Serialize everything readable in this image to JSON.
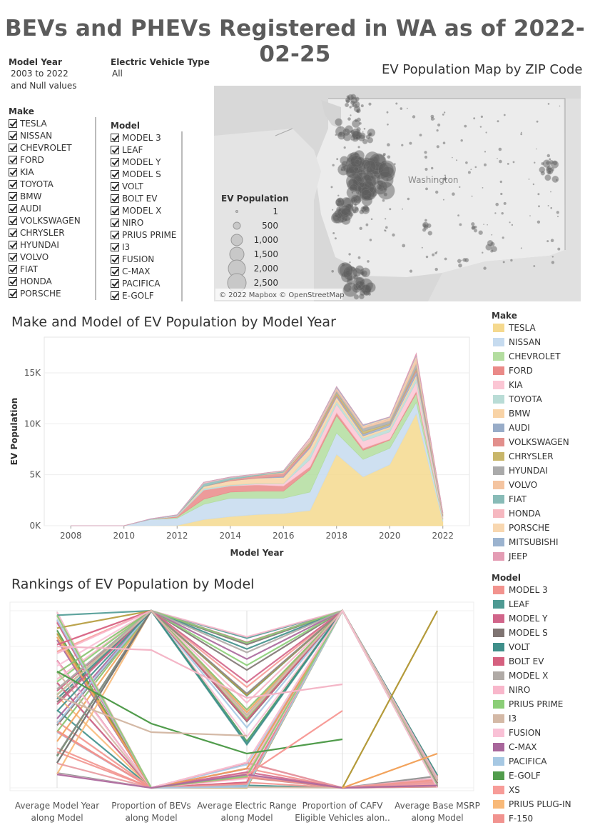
{
  "dashboard": {
    "title": "BEVs and PHEVs Registered in WA as of 2022-02-25"
  },
  "filters": {
    "model_year": {
      "label": "Model Year",
      "value_line1": "2003 to 2022",
      "value_line2": "and Null values"
    },
    "ev_type": {
      "label": "Electric Vehicle Type",
      "value": "All"
    },
    "make": {
      "label": "Make",
      "items": [
        "TESLA",
        "NISSAN",
        "CHEVROLET",
        "FORD",
        "KIA",
        "TOYOTA",
        "BMW",
        "AUDI",
        "VOLKSWAGEN",
        "CHRYSLER",
        "HYUNDAI",
        "VOLVO",
        "FIAT",
        "HONDA",
        "PORSCHE"
      ]
    },
    "model": {
      "label": "Model",
      "items": [
        "MODEL 3",
        "LEAF",
        "MODEL Y",
        "MODEL S",
        "VOLT",
        "BOLT EV",
        "MODEL X",
        "NIRO",
        "PRIUS PRIME",
        "I3",
        "FUSION",
        "C-MAX",
        "PACIFICA",
        "E-GOLF"
      ]
    }
  },
  "map": {
    "title": "EV Population Map by ZIP Code",
    "state_label": "Washington",
    "attribution": "© 2022 Mapbox © OpenStreetMap",
    "legend": {
      "title": "EV Population",
      "sizes": [
        "1",
        "500",
        "1,000",
        "1,500",
        "2,000",
        "2,500"
      ]
    }
  },
  "chart_data": [
    {
      "type": "area",
      "title": "Make and Model of EV Population by Model Year",
      "xlabel": "Model Year",
      "ylabel": "EV Population",
      "xlim": [
        2007,
        2023
      ],
      "ylim": [
        0,
        18500
      ],
      "x_ticks": [
        "2008",
        "2010",
        "2012",
        "2014",
        "2016",
        "2018",
        "2020",
        "2022"
      ],
      "y_ticks": [
        "0K",
        "5K",
        "10K",
        "15K"
      ],
      "x": [
        2008,
        2009,
        2010,
        2011,
        2012,
        2013,
        2014,
        2015,
        2016,
        2017,
        2018,
        2019,
        2020,
        2021,
        2022
      ],
      "legend_title": "Make",
      "stacked_series_colors": {
        "TESLA": "#f5d98e",
        "NISSAN": "#c6dbef",
        "CHEVROLET": "#b3dd9f",
        "FORD": "#ea8a88",
        "KIA": "#fbc6d4",
        "TOYOTA": "#b9dcd6",
        "BMW": "#f8d3a6",
        "AUDI": "#98acc8",
        "VOLKSWAGEN": "#e28f8c",
        "CHRYSLER": "#c8b66a",
        "HYUNDAI": "#aaaaaa",
        "VOLVO": "#f4c4a0",
        "FIAT": "#88bbb7",
        "HONDA": "#f6b8c0",
        "PORSCHE": "#f8d7b0",
        "MITSUBISHI": "#9bb3cf",
        "JEEP": "#e49cb4"
      },
      "series": [
        {
          "name": "TESLA",
          "values": [
            0,
            0,
            0,
            10,
            30,
            600,
            900,
            1100,
            1200,
            1500,
            7000,
            4800,
            6000,
            11000,
            400
          ]
        },
        {
          "name": "NISSAN",
          "values": [
            0,
            0,
            0,
            600,
            700,
            1500,
            1800,
            1600,
            1500,
            1800,
            2100,
            1700,
            1600,
            1100,
            200
          ]
        },
        {
          "name": "CHEVROLET",
          "values": [
            0,
            0,
            0,
            20,
            100,
            500,
            600,
            700,
            700,
            2200,
            1700,
            900,
            800,
            900,
            100
          ]
        },
        {
          "name": "FORD",
          "values": [
            0,
            0,
            0,
            0,
            100,
            900,
            600,
            600,
            500,
            300,
            300,
            200,
            100,
            200,
            20
          ]
        },
        {
          "name": "KIA",
          "values": [
            0,
            0,
            0,
            0,
            0,
            0,
            10,
            100,
            200,
            700,
            800,
            700,
            700,
            900,
            100
          ]
        },
        {
          "name": "TOYOTA",
          "values": [
            0,
            0,
            0,
            0,
            100,
            150,
            100,
            60,
            40,
            500,
            300,
            300,
            300,
            400,
            50
          ]
        },
        {
          "name": "BMW",
          "values": [
            0,
            0,
            0,
            0,
            0,
            200,
            400,
            500,
            600,
            600,
            400,
            200,
            200,
            300,
            50
          ]
        },
        {
          "name": "AUDI",
          "values": [
            0,
            0,
            0,
            0,
            0,
            0,
            0,
            10,
            100,
            150,
            150,
            200,
            200,
            350,
            40
          ]
        },
        {
          "name": "VOLKSWAGEN",
          "values": [
            0,
            0,
            0,
            0,
            0,
            0,
            100,
            250,
            300,
            200,
            100,
            10,
            10,
            200,
            50
          ]
        },
        {
          "name": "CHRYSLER",
          "values": [
            0,
            0,
            0,
            0,
            0,
            0,
            0,
            0,
            0,
            150,
            200,
            250,
            100,
            100,
            20
          ]
        },
        {
          "name": "HYUNDAI",
          "values": [
            0,
            0,
            0,
            0,
            0,
            0,
            0,
            0,
            0,
            100,
            200,
            300,
            300,
            500,
            100
          ]
        },
        {
          "name": "VOLVO",
          "values": [
            0,
            0,
            0,
            0,
            0,
            0,
            0,
            0,
            100,
            150,
            150,
            150,
            200,
            500,
            100
          ]
        },
        {
          "name": "FIAT",
          "values": [
            0,
            0,
            0,
            0,
            0,
            300,
            200,
            100,
            100,
            10,
            0,
            0,
            0,
            0,
            0
          ]
        },
        {
          "name": "HONDA",
          "values": [
            0,
            0,
            0,
            0,
            0,
            100,
            50,
            30,
            20,
            200,
            100,
            30,
            20,
            20,
            0
          ]
        },
        {
          "name": "PORSCHE",
          "values": [
            0,
            0,
            0,
            0,
            0,
            0,
            0,
            20,
            20,
            50,
            50,
            80,
            100,
            200,
            20
          ]
        },
        {
          "name": "MITSUBISHI",
          "values": [
            0,
            0,
            0,
            50,
            50,
            20,
            20,
            10,
            20,
            30,
            100,
            80,
            60,
            100,
            10
          ]
        },
        {
          "name": "JEEP",
          "values": [
            0,
            0,
            0,
            0,
            0,
            0,
            0,
            0,
            0,
            0,
            0,
            0,
            0,
            150,
            30
          ]
        }
      ]
    },
    {
      "type": "line",
      "title": "Rankings of EV Population by Model",
      "axes": [
        "Average Model Year|along Model",
        "Proportion of BEVs|along Model",
        "Average Electric Range|along Model",
        "Proportion of CAFV|Eligible Vehicles alon..",
        "Average Base MSRP|along Model"
      ],
      "legend_title": "Model",
      "legend": [
        {
          "name": "MODEL 3",
          "color": "#f2938e"
        },
        {
          "name": "LEAF",
          "color": "#4e9a93"
        },
        {
          "name": "MODEL Y",
          "color": "#d1658a"
        },
        {
          "name": "MODEL S",
          "color": "#7f7472"
        },
        {
          "name": "VOLT",
          "color": "#3f8f8a"
        },
        {
          "name": "BOLT EV",
          "color": "#d5607f"
        },
        {
          "name": "MODEL X",
          "color": "#b0aaa6"
        },
        {
          "name": "NIRO",
          "color": "#f8b7cb"
        },
        {
          "name": "PRIUS PRIME",
          "color": "#8bce77"
        },
        {
          "name": "I3",
          "color": "#d4b9a6"
        },
        {
          "name": "FUSION",
          "color": "#f9c1d6"
        },
        {
          "name": "C-MAX",
          "color": "#a8669b"
        },
        {
          "name": "PACIFICA",
          "color": "#a6c8e3"
        },
        {
          "name": "E-GOLF",
          "color": "#519c4c"
        },
        {
          "name": "XS",
          "color": "#f79c98"
        },
        {
          "name": "PRIUS PLUG-IN",
          "color": "#f8b978"
        },
        {
          "name": "F-150",
          "color": "#f1938f"
        }
      ]
    }
  ]
}
